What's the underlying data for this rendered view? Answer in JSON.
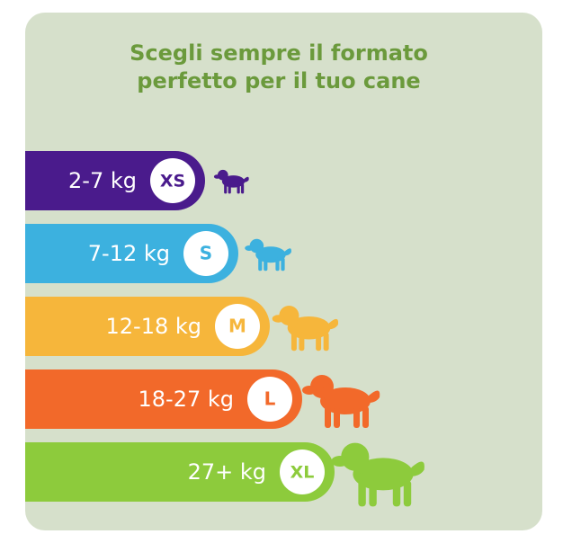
{
  "header": {
    "title_lines": [
      "Scegli sempre il formato",
      "perfetto per il tuo cane"
    ],
    "color": "#6b9a3c"
  },
  "rows": [
    {
      "weight": "2-7 kg",
      "size": "XS",
      "color": "#4a1b8c"
    },
    {
      "weight": "7-12 kg",
      "size": "S",
      "color": "#3cb1df"
    },
    {
      "weight": "12-18 kg",
      "size": "M",
      "color": "#f6b63b"
    },
    {
      "weight": "18-27 kg",
      "size": "L",
      "color": "#f2692a"
    },
    {
      "weight": "27+ kg",
      "size": "XL",
      "color": "#8dcb3c"
    }
  ]
}
